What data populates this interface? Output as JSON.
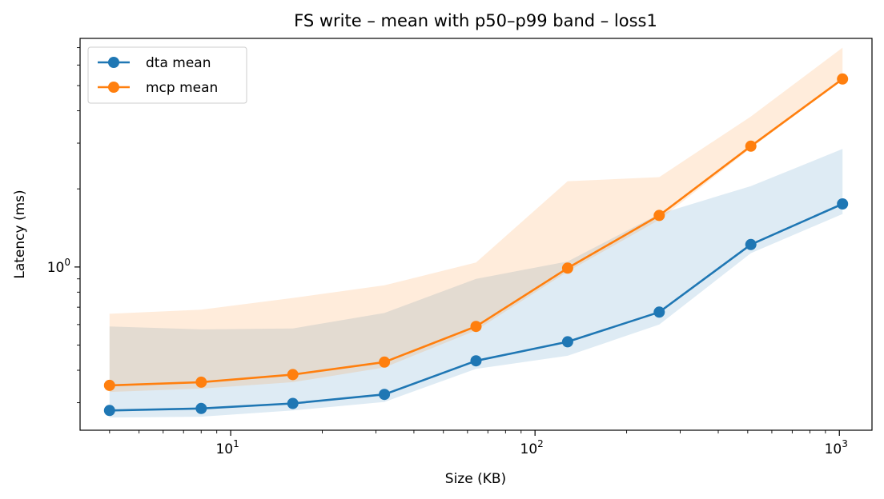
{
  "chart_data": {
    "type": "line",
    "title": "FS write – mean with p50–p99 band – loss1",
    "xlabel": "Size (KB)",
    "ylabel": "Latency (ms)",
    "xscale": "log",
    "yscale": "log",
    "xlim": [
      3.2,
      1280
    ],
    "ylim": [
      0.235,
      7.6
    ],
    "x": [
      4,
      8,
      16,
      32,
      64,
      128,
      256,
      512,
      1024
    ],
    "x_ticks": [
      {
        "value": 10,
        "base": "10",
        "exp": "1"
      },
      {
        "value": 100,
        "base": "10",
        "exp": "2"
      },
      {
        "value": 1000,
        "base": "10",
        "exp": "3"
      }
    ],
    "y_ticks": [
      {
        "value": 1,
        "base": "10",
        "exp": "0"
      }
    ],
    "legend_position": "top-left",
    "grid": false,
    "series": [
      {
        "name": "dta mean",
        "color": "#1f77b4",
        "values": [
          0.28,
          0.285,
          0.298,
          0.323,
          0.435,
          0.515,
          0.67,
          1.22,
          1.75
        ],
        "band_p50": [
          0.263,
          0.265,
          0.28,
          0.302,
          0.405,
          0.455,
          0.6,
          1.13,
          1.6
        ],
        "band_p99": [
          0.59,
          0.575,
          0.58,
          0.665,
          0.9,
          1.05,
          1.6,
          2.05,
          2.85
        ]
      },
      {
        "name": "mcp mean",
        "color": "#ff7f0e",
        "values": [
          0.35,
          0.36,
          0.385,
          0.43,
          0.59,
          0.99,
          1.58,
          2.92,
          5.3
        ],
        "band_p50": [
          0.33,
          0.34,
          0.36,
          0.41,
          0.57,
          0.96,
          1.52,
          2.87,
          5.25
        ],
        "band_p99": [
          0.66,
          0.685,
          0.76,
          0.85,
          1.04,
          2.14,
          2.22,
          3.8,
          7.0
        ]
      }
    ]
  }
}
